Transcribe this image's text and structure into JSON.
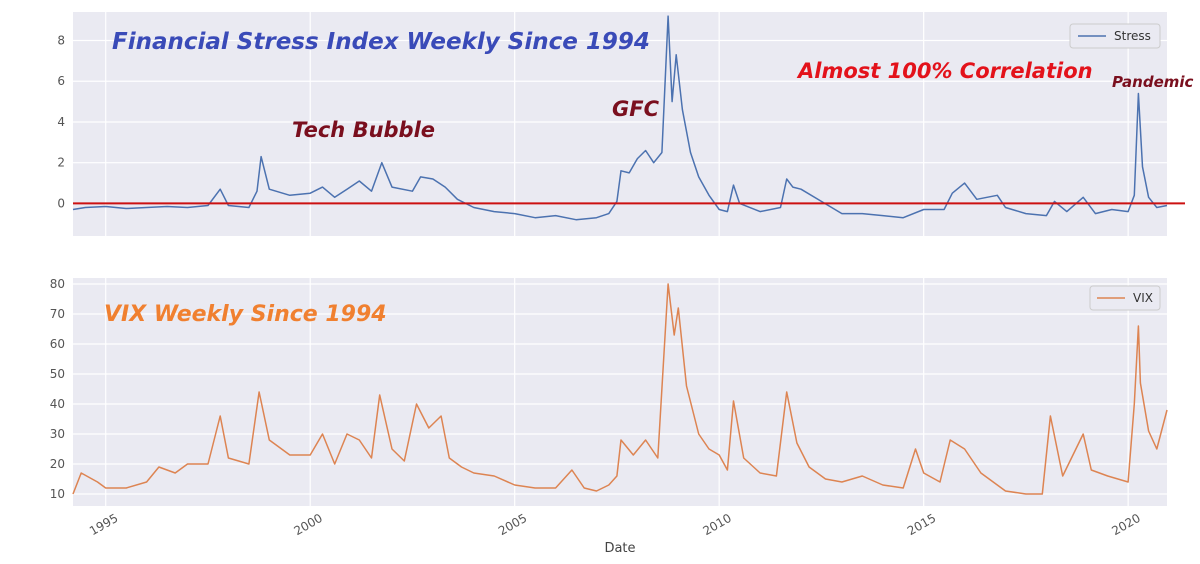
{
  "chart_data": [
    {
      "type": "line",
      "title": "Financial Stress Index Weekly Since 1994",
      "xlabel": "",
      "ylabel": "",
      "xlim": [
        1994.2,
        2020.95
      ],
      "ylim": [
        -1.6,
        9.4
      ],
      "yticks": [
        0,
        2,
        4,
        6,
        8
      ],
      "grid": true,
      "legend_position": "top-right",
      "reference_line": {
        "y": 0,
        "color": "#cc1111"
      },
      "annotations": [
        {
          "text": "Tech Bubble",
          "color": "#7a0f1e"
        },
        {
          "text": "GFC",
          "color": "#7a0f1e"
        },
        {
          "text": "Almost 100% Correlation",
          "color": "#e3121b"
        },
        {
          "text": "Pandemic",
          "color": "#7a0f1e"
        }
      ],
      "series": [
        {
          "name": "Stress",
          "color": "#4c72b0",
          "points": [
            [
              1994.2,
              -0.3
            ],
            [
              1994.5,
              -0.2
            ],
            [
              1995.0,
              -0.15
            ],
            [
              1995.5,
              -0.25
            ],
            [
              1996.0,
              -0.2
            ],
            [
              1996.5,
              -0.15
            ],
            [
              1997.0,
              -0.2
            ],
            [
              1997.5,
              -0.1
            ],
            [
              1997.8,
              0.7
            ],
            [
              1998.0,
              -0.1
            ],
            [
              1998.5,
              -0.2
            ],
            [
              1998.7,
              0.6
            ],
            [
              1998.8,
              2.3
            ],
            [
              1999.0,
              0.7
            ],
            [
              1999.5,
              0.4
            ],
            [
              2000.0,
              0.5
            ],
            [
              2000.3,
              0.8
            ],
            [
              2000.6,
              0.3
            ],
            [
              2000.9,
              0.7
            ],
            [
              2001.2,
              1.1
            ],
            [
              2001.5,
              0.6
            ],
            [
              2001.75,
              2.0
            ],
            [
              2002.0,
              0.8
            ],
            [
              2002.5,
              0.6
            ],
            [
              2002.7,
              1.3
            ],
            [
              2003.0,
              1.2
            ],
            [
              2003.3,
              0.8
            ],
            [
              2003.6,
              0.2
            ],
            [
              2004.0,
              -0.2
            ],
            [
              2004.5,
              -0.4
            ],
            [
              2005.0,
              -0.5
            ],
            [
              2005.5,
              -0.7
            ],
            [
              2006.0,
              -0.6
            ],
            [
              2006.5,
              -0.8
            ],
            [
              2007.0,
              -0.7
            ],
            [
              2007.3,
              -0.5
            ],
            [
              2007.5,
              0.1
            ],
            [
              2007.6,
              1.6
            ],
            [
              2007.8,
              1.5
            ],
            [
              2008.0,
              2.2
            ],
            [
              2008.2,
              2.6
            ],
            [
              2008.4,
              2.0
            ],
            [
              2008.6,
              2.5
            ],
            [
              2008.75,
              9.2
            ],
            [
              2008.85,
              5.0
            ],
            [
              2008.95,
              7.3
            ],
            [
              2009.1,
              4.6
            ],
            [
              2009.3,
              2.5
            ],
            [
              2009.5,
              1.3
            ],
            [
              2009.75,
              0.4
            ],
            [
              2010.0,
              -0.3
            ],
            [
              2010.2,
              -0.4
            ],
            [
              2010.35,
              0.9
            ],
            [
              2010.5,
              0.0
            ],
            [
              2011.0,
              -0.4
            ],
            [
              2011.5,
              -0.2
            ],
            [
              2011.65,
              1.2
            ],
            [
              2011.8,
              0.8
            ],
            [
              2012.0,
              0.7
            ],
            [
              2012.5,
              0.1
            ],
            [
              2013.0,
              -0.5
            ],
            [
              2013.5,
              -0.5
            ],
            [
              2014.0,
              -0.6
            ],
            [
              2014.5,
              -0.7
            ],
            [
              2015.0,
              -0.3
            ],
            [
              2015.5,
              -0.3
            ],
            [
              2015.7,
              0.5
            ],
            [
              2016.0,
              1.0
            ],
            [
              2016.3,
              0.2
            ],
            [
              2016.8,
              0.4
            ],
            [
              2017.0,
              -0.2
            ],
            [
              2017.5,
              -0.5
            ],
            [
              2018.0,
              -0.6
            ],
            [
              2018.2,
              0.1
            ],
            [
              2018.5,
              -0.4
            ],
            [
              2018.9,
              0.3
            ],
            [
              2019.2,
              -0.5
            ],
            [
              2019.6,
              -0.3
            ],
            [
              2020.0,
              -0.4
            ],
            [
              2020.15,
              0.4
            ],
            [
              2020.25,
              5.4
            ],
            [
              2020.35,
              1.8
            ],
            [
              2020.5,
              0.3
            ],
            [
              2020.7,
              -0.2
            ],
            [
              2020.95,
              -0.1
            ]
          ]
        }
      ]
    },
    {
      "type": "line",
      "title": "VIX Weekly Since 1994",
      "xlabel": "Date",
      "ylabel": "",
      "xlim": [
        1994.2,
        2020.95
      ],
      "ylim": [
        6,
        82
      ],
      "yticks": [
        10,
        20,
        30,
        40,
        50,
        60,
        70,
        80
      ],
      "xticks": [
        "1995",
        "2000",
        "2005",
        "2010",
        "2015",
        "2020"
      ],
      "grid": true,
      "legend_position": "top-right",
      "series": [
        {
          "name": "VIX",
          "color": "#dd8452",
          "points": [
            [
              1994.2,
              10
            ],
            [
              1994.4,
              17
            ],
            [
              1994.8,
              14
            ],
            [
              1995.0,
              12
            ],
            [
              1995.5,
              12
            ],
            [
              1996.0,
              14
            ],
            [
              1996.3,
              19
            ],
            [
              1996.7,
              17
            ],
            [
              1997.0,
              20
            ],
            [
              1997.5,
              20
            ],
            [
              1997.8,
              36
            ],
            [
              1998.0,
              22
            ],
            [
              1998.5,
              20
            ],
            [
              1998.75,
              44
            ],
            [
              1999.0,
              28
            ],
            [
              1999.5,
              23
            ],
            [
              2000.0,
              23
            ],
            [
              2000.3,
              30
            ],
            [
              2000.6,
              20
            ],
            [
              2000.9,
              30
            ],
            [
              2001.2,
              28
            ],
            [
              2001.5,
              22
            ],
            [
              2001.7,
              43
            ],
            [
              2002.0,
              25
            ],
            [
              2002.3,
              21
            ],
            [
              2002.6,
              40
            ],
            [
              2002.9,
              32
            ],
            [
              2003.2,
              36
            ],
            [
              2003.4,
              22
            ],
            [
              2003.7,
              19
            ],
            [
              2004.0,
              17
            ],
            [
              2004.5,
              16
            ],
            [
              2005.0,
              13
            ],
            [
              2005.5,
              12
            ],
            [
              2006.0,
              12
            ],
            [
              2006.4,
              18
            ],
            [
              2006.7,
              12
            ],
            [
              2007.0,
              11
            ],
            [
              2007.3,
              13
            ],
            [
              2007.5,
              16
            ],
            [
              2007.6,
              28
            ],
            [
              2007.9,
              23
            ],
            [
              2008.2,
              28
            ],
            [
              2008.5,
              22
            ],
            [
              2008.75,
              80
            ],
            [
              2008.9,
              63
            ],
            [
              2009.0,
              72
            ],
            [
              2009.2,
              46
            ],
            [
              2009.5,
              30
            ],
            [
              2009.75,
              25
            ],
            [
              2010.0,
              23
            ],
            [
              2010.2,
              18
            ],
            [
              2010.35,
              41
            ],
            [
              2010.6,
              22
            ],
            [
              2011.0,
              17
            ],
            [
              2011.4,
              16
            ],
            [
              2011.65,
              44
            ],
            [
              2011.9,
              27
            ],
            [
              2012.2,
              19
            ],
            [
              2012.6,
              15
            ],
            [
              2013.0,
              14
            ],
            [
              2013.5,
              16
            ],
            [
              2014.0,
              13
            ],
            [
              2014.5,
              12
            ],
            [
              2014.8,
              25
            ],
            [
              2015.0,
              17
            ],
            [
              2015.4,
              14
            ],
            [
              2015.65,
              28
            ],
            [
              2016.0,
              25
            ],
            [
              2016.4,
              17
            ],
            [
              2016.8,
              13
            ],
            [
              2017.0,
              11
            ],
            [
              2017.5,
              10
            ],
            [
              2017.9,
              10
            ],
            [
              2018.1,
              36
            ],
            [
              2018.4,
              16
            ],
            [
              2018.9,
              30
            ],
            [
              2019.1,
              18
            ],
            [
              2019.5,
              16
            ],
            [
              2020.0,
              14
            ],
            [
              2020.15,
              40
            ],
            [
              2020.25,
              66
            ],
            [
              2020.3,
              47
            ],
            [
              2020.5,
              31
            ],
            [
              2020.7,
              25
            ],
            [
              2020.95,
              38
            ]
          ]
        }
      ]
    }
  ],
  "panels": {
    "top": {
      "legend_label": "Stress",
      "title": "Financial Stress Index Weekly Since 1994",
      "title_color": "#3a4bb8",
      "annotations": {
        "tech": "Tech Bubble",
        "gfc": "GFC",
        "corr": "Almost 100% Correlation",
        "pandemic": "Pandemic"
      },
      "yticks": [
        "0",
        "2",
        "4",
        "6",
        "8"
      ]
    },
    "bottom": {
      "legend_label": "VIX",
      "title": "VIX Weekly Since 1994",
      "title_color": "#f08030",
      "yticks": [
        "10",
        "20",
        "30",
        "40",
        "50",
        "60",
        "70",
        "80"
      ],
      "xticks": [
        "1995",
        "2000",
        "2005",
        "2010",
        "2015",
        "2020"
      ],
      "xlabel": "Date"
    }
  }
}
